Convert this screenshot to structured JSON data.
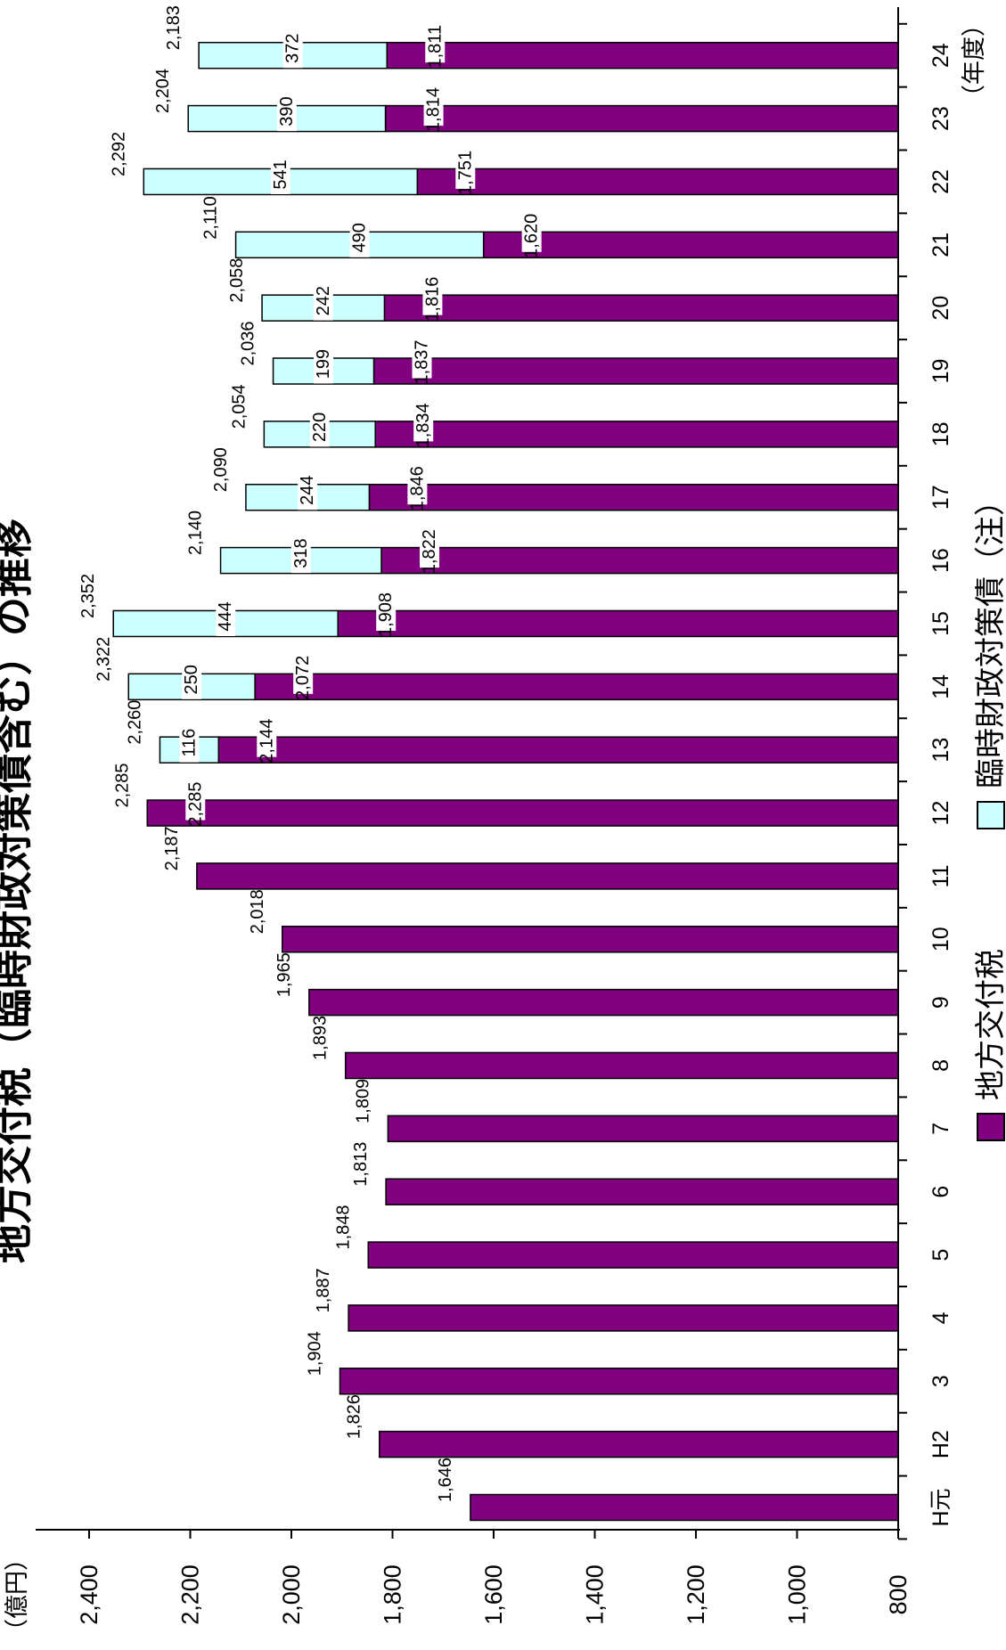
{
  "chart_data": {
    "type": "bar",
    "title": "地方交付税（臨時財政対策債含む）の推移",
    "unit_label": "（億円）",
    "x_unit_label": "（年度）",
    "categories": [
      "H元",
      "H2",
      "3",
      "4",
      "5",
      "6",
      "7",
      "8",
      "9",
      "10",
      "11",
      "12",
      "13",
      "14",
      "15",
      "16",
      "17",
      "18",
      "19",
      "20",
      "21",
      "22",
      "23",
      "24"
    ],
    "series": [
      {
        "name": "地方交付税",
        "color": "#800080",
        "values": [
          1646,
          1826,
          1904,
          1887,
          1848,
          1813,
          1809,
          1893,
          1965,
          2018,
          2187,
          2285,
          2144,
          2072,
          1908,
          1822,
          1846,
          1834,
          1837,
          1816,
          1620,
          1751,
          1814,
          1811
        ]
      },
      {
        "name": "臨時財政対策債（注）",
        "color": "#ccffff",
        "values": [
          null,
          null,
          null,
          null,
          null,
          null,
          null,
          null,
          null,
          null,
          null,
          null,
          116,
          250,
          444,
          318,
          244,
          220,
          199,
          242,
          490,
          541,
          390,
          372
        ]
      }
    ],
    "totals": [
      "1,646",
      "1,826",
      "1,904",
      "1,887",
      "1,848",
      "1,813",
      "1,809",
      "1,893",
      "1,965",
      "2,018",
      "2,187",
      "2,285",
      "2,260",
      "2,322",
      "2,352",
      "2,140",
      "2,090",
      "2,054",
      "2,036",
      "2,058",
      "2,110",
      "2,292",
      "2,204",
      "2,183"
    ],
    "inner_labels": [
      "",
      "",
      "",
      "",
      "",
      "",
      "",
      "",
      "",
      "",
      "",
      "2,285",
      "2,144",
      "2,072",
      "1,908",
      "1,822",
      "1,846",
      "1,834",
      "1,837",
      "1,816",
      "1,620",
      "1,751",
      "1,814",
      "1,811"
    ],
    "debt_labels": [
      "",
      "",
      "",
      "",
      "",
      "",
      "",
      "",
      "",
      "",
      "",
      "",
      "116",
      "250",
      "444",
      "318",
      "244",
      "220",
      "199",
      "242",
      "490",
      "541",
      "390",
      "372"
    ],
    "ylim": [
      800,
      2400
    ],
    "yticks": [
      800,
      1000,
      1200,
      1400,
      1600,
      1800,
      2000,
      2200,
      2400
    ],
    "ytick_labels": [
      "800",
      "1,000",
      "1,200",
      "1,400",
      "1,600",
      "1,800",
      "2,000",
      "2,200",
      "2,400"
    ],
    "orientation": "rotated-90",
    "legend_position": "bottom"
  }
}
